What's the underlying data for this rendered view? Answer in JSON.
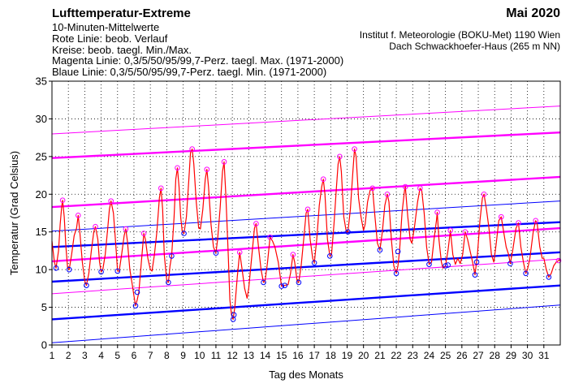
{
  "header": {
    "title": "Lufttemperatur-Extreme",
    "month": "Mai 2020",
    "lines": [
      "10-Minuten-Mittelwerte",
      "Rote Linie: beob. Verlauf",
      "Kreise: beob. taegl. Min./Max.",
      "Magenta Linie: 0,3/5/50/95/99,7-Perz. taegl. Max. (1971-2000)",
      "Blaue Linie: 0,3/5/50/95/99,7-Perz. taegl. Min. (1971-2000)"
    ],
    "institute": [
      "Institut f. Meteorologie (BOKU-Met) 1190 Wien",
      "Dach Schwackhoefer-Haus (265 m NN)"
    ]
  },
  "chart_data": {
    "type": "line",
    "xlabel": "Tag des Monats",
    "ylabel": "Temperatur (Grad Celsius)",
    "ylim": [
      0,
      35
    ],
    "xlim": [
      1,
      32
    ],
    "x_ticks": [
      1,
      2,
      3,
      4,
      5,
      6,
      7,
      8,
      9,
      10,
      11,
      12,
      13,
      14,
      15,
      16,
      17,
      18,
      19,
      20,
      21,
      22,
      23,
      24,
      25,
      26,
      27,
      28,
      29,
      30,
      31
    ],
    "y_ticks": [
      0,
      5,
      10,
      15,
      20,
      25,
      30,
      35
    ],
    "grid": true,
    "colors": {
      "observed": "#ff0000",
      "max_percentile": "#ff00ff",
      "min_percentile": "#0000ff",
      "circle_max": "#ff00ff",
      "circle_min": "#0000ff"
    },
    "max_percentiles": [
      {
        "name": "0,3",
        "start": 6.8,
        "end": 11.4,
        "weight": "thin"
      },
      {
        "name": "5",
        "start": 11.1,
        "end": 15.5,
        "weight": "thick"
      },
      {
        "name": "50",
        "start": 18.3,
        "end": 22.3,
        "weight": "thick"
      },
      {
        "name": "95",
        "start": 24.8,
        "end": 28.2,
        "weight": "thick"
      },
      {
        "name": "99,7",
        "start": 28.0,
        "end": 31.7,
        "weight": "thin"
      }
    ],
    "min_percentiles": [
      {
        "name": "0,3",
        "start": 0.3,
        "end": 5.3,
        "weight": "thin"
      },
      {
        "name": "5",
        "start": 3.4,
        "end": 7.9,
        "weight": "thick"
      },
      {
        "name": "50",
        "start": 8.4,
        "end": 12.3,
        "weight": "thick"
      },
      {
        "name": "95",
        "start": 13.0,
        "end": 16.3,
        "weight": "thick"
      },
      {
        "name": "99,7",
        "start": 15.1,
        "end": 19.1,
        "weight": "thin"
      }
    ],
    "observed": [
      [
        1.0,
        13.8
      ],
      [
        1.15,
        11.0
      ],
      [
        1.25,
        10.2
      ],
      [
        1.4,
        12.5
      ],
      [
        1.5,
        16.0
      ],
      [
        1.6,
        18.5
      ],
      [
        1.65,
        19.2
      ],
      [
        1.75,
        17.0
      ],
      [
        1.85,
        13.0
      ],
      [
        1.95,
        10.3
      ],
      [
        2.05,
        10.0
      ],
      [
        2.2,
        12.0
      ],
      [
        2.35,
        14.5
      ],
      [
        2.5,
        15.5
      ],
      [
        2.6,
        17.2
      ],
      [
        2.7,
        15.0
      ],
      [
        2.85,
        11.0
      ],
      [
        3.0,
        8.5
      ],
      [
        3.1,
        7.9
      ],
      [
        3.25,
        9.5
      ],
      [
        3.4,
        12.5
      ],
      [
        3.55,
        15.0
      ],
      [
        3.65,
        15.7
      ],
      [
        3.8,
        14.0
      ],
      [
        3.9,
        11.0
      ],
      [
        4.0,
        9.7
      ],
      [
        4.1,
        10.0
      ],
      [
        4.25,
        12.0
      ],
      [
        4.4,
        15.5
      ],
      [
        4.5,
        18.0
      ],
      [
        4.6,
        19.1
      ],
      [
        4.75,
        17.5
      ],
      [
        4.9,
        13.0
      ],
      [
        5.0,
        9.8
      ],
      [
        5.1,
        9.8
      ],
      [
        5.25,
        12.0
      ],
      [
        5.4,
        14.5
      ],
      [
        5.5,
        15.4
      ],
      [
        5.6,
        13.8
      ],
      [
        5.75,
        10.0
      ],
      [
        5.9,
        8.0
      ],
      [
        6.0,
        6.5
      ],
      [
        6.1,
        5.2
      ],
      [
        6.2,
        6.0
      ],
      [
        6.3,
        7.0
      ],
      [
        6.45,
        11.0
      ],
      [
        6.6,
        14.8
      ],
      [
        6.7,
        14.0
      ],
      [
        6.85,
        11.5
      ],
      [
        7.0,
        10.0
      ],
      [
        7.1,
        9.8
      ],
      [
        7.25,
        12.0
      ],
      [
        7.4,
        15.0
      ],
      [
        7.55,
        19.5
      ],
      [
        7.65,
        20.8
      ],
      [
        7.75,
        18.0
      ],
      [
        7.85,
        12.0
      ],
      [
        8.0,
        8.5
      ],
      [
        8.1,
        8.3
      ],
      [
        8.2,
        10.5
      ],
      [
        8.3,
        11.8
      ],
      [
        8.45,
        17.0
      ],
      [
        8.55,
        22.0
      ],
      [
        8.65,
        23.5
      ],
      [
        8.75,
        21.0
      ],
      [
        8.85,
        17.0
      ],
      [
        8.95,
        15.0
      ],
      [
        9.05,
        14.8
      ],
      [
        9.2,
        17.0
      ],
      [
        9.35,
        22.0
      ],
      [
        9.45,
        25.5
      ],
      [
        9.55,
        26.0
      ],
      [
        9.65,
        24.0
      ],
      [
        9.8,
        19.0
      ],
      [
        9.95,
        15.5
      ],
      [
        10.05,
        15.4
      ],
      [
        10.2,
        18.0
      ],
      [
        10.35,
        22.0
      ],
      [
        10.45,
        23.3
      ],
      [
        10.55,
        21.0
      ],
      [
        10.7,
        16.0
      ],
      [
        10.85,
        13.0
      ],
      [
        11.0,
        12.2
      ],
      [
        11.1,
        14.0
      ],
      [
        11.25,
        18.0
      ],
      [
        11.4,
        23.0
      ],
      [
        11.5,
        24.3
      ],
      [
        11.6,
        20.0
      ],
      [
        11.75,
        12.0
      ],
      [
        11.85,
        6.0
      ],
      [
        11.95,
        4.0
      ],
      [
        12.05,
        3.4
      ],
      [
        12.15,
        5.0
      ],
      [
        12.3,
        9.0
      ],
      [
        12.45,
        12.3
      ],
      [
        12.6,
        10.0
      ],
      [
        12.75,
        7.5
      ],
      [
        12.9,
        6.2
      ],
      [
        13.0,
        7.5
      ],
      [
        13.15,
        11.0
      ],
      [
        13.35,
        15.5
      ],
      [
        13.45,
        16.1
      ],
      [
        13.6,
        13.0
      ],
      [
        13.75,
        10.0
      ],
      [
        13.9,
        8.3
      ],
      [
        14.0,
        8.5
      ],
      [
        14.15,
        11.0
      ],
      [
        14.3,
        14.3
      ],
      [
        14.45,
        13.8
      ],
      [
        14.6,
        13.0
      ],
      [
        14.8,
        11.0
      ],
      [
        15.0,
        7.8
      ],
      [
        15.2,
        7.9
      ],
      [
        15.4,
        8.0
      ],
      [
        15.55,
        9.5
      ],
      [
        15.7,
        12.0
      ],
      [
        15.8,
        11.0
      ],
      [
        15.95,
        8.5
      ],
      [
        16.05,
        8.3
      ],
      [
        16.2,
        10.5
      ],
      [
        16.35,
        14.0
      ],
      [
        16.5,
        17.5
      ],
      [
        16.6,
        18.0
      ],
      [
        16.75,
        14.0
      ],
      [
        16.9,
        11.5
      ],
      [
        17.0,
        10.9
      ],
      [
        17.15,
        14.0
      ],
      [
        17.3,
        18.5
      ],
      [
        17.45,
        21.0
      ],
      [
        17.55,
        22.0
      ],
      [
        17.65,
        20.0
      ],
      [
        17.8,
        14.0
      ],
      [
        17.95,
        11.8
      ],
      [
        18.05,
        12.0
      ],
      [
        18.2,
        16.0
      ],
      [
        18.35,
        21.0
      ],
      [
        18.45,
        24.0
      ],
      [
        18.55,
        25.0
      ],
      [
        18.65,
        23.0
      ],
      [
        18.8,
        17.0
      ],
      [
        18.95,
        15.0
      ],
      [
        19.05,
        15.0
      ],
      [
        19.2,
        18.0
      ],
      [
        19.35,
        23.0
      ],
      [
        19.45,
        26.0
      ],
      [
        19.55,
        25.0
      ],
      [
        19.7,
        19.5
      ],
      [
        19.85,
        17.0
      ],
      [
        20.0,
        15.2
      ],
      [
        20.1,
        16.0
      ],
      [
        20.25,
        19.0
      ],
      [
        20.4,
        20.5
      ],
      [
        20.55,
        20.8
      ],
      [
        20.7,
        17.0
      ],
      [
        20.85,
        13.5
      ],
      [
        21.0,
        12.6
      ],
      [
        21.15,
        15.0
      ],
      [
        21.3,
        18.5
      ],
      [
        21.45,
        20.0
      ],
      [
        21.55,
        19.0
      ],
      [
        21.7,
        14.0
      ],
      [
        21.85,
        10.5
      ],
      [
        22.0,
        9.5
      ],
      [
        22.1,
        10.5
      ],
      [
        22.2,
        12.5
      ],
      [
        22.35,
        17.5
      ],
      [
        22.5,
        20.5
      ],
      [
        22.55,
        21.0
      ],
      [
        22.7,
        17.0
      ],
      [
        22.85,
        14.0
      ],
      [
        22.95,
        13.5
      ],
      [
        23.1,
        15.5
      ],
      [
        23.3,
        19.0
      ],
      [
        23.45,
        20.8
      ],
      [
        23.55,
        20.5
      ],
      [
        23.7,
        17.5
      ],
      [
        23.85,
        13.0
      ],
      [
        24.0,
        10.7
      ],
      [
        24.15,
        11.0
      ],
      [
        24.3,
        14.0
      ],
      [
        24.45,
        16.5
      ],
      [
        24.5,
        17.6
      ],
      [
        24.6,
        14.0
      ],
      [
        24.75,
        11.0
      ],
      [
        24.85,
        10.2
      ],
      [
        25.0,
        10.5
      ],
      [
        25.15,
        12.5
      ],
      [
        25.3,
        15.2
      ],
      [
        25.45,
        12.0
      ],
      [
        25.6,
        10.7
      ],
      [
        25.75,
        11.5
      ],
      [
        25.9,
        10.8
      ],
      [
        26.05,
        12.0
      ],
      [
        26.2,
        15.0
      ],
      [
        26.35,
        14.0
      ],
      [
        26.5,
        12.5
      ],
      [
        26.65,
        11.0
      ],
      [
        26.8,
        9.3
      ],
      [
        26.95,
        12.0
      ],
      [
        27.1,
        16.5
      ],
      [
        27.25,
        19.5
      ],
      [
        27.35,
        20.0
      ],
      [
        27.5,
        18.0
      ],
      [
        27.65,
        15.5
      ],
      [
        27.8,
        12.0
      ],
      [
        27.95,
        11.0
      ],
      [
        28.1,
        13.5
      ],
      [
        28.25,
        16.5
      ],
      [
        28.4,
        17.0
      ],
      [
        28.55,
        15.0
      ],
      [
        28.7,
        13.0
      ],
      [
        28.85,
        12.0
      ],
      [
        28.95,
        10.8
      ],
      [
        29.1,
        12.5
      ],
      [
        29.3,
        15.5
      ],
      [
        29.45,
        16.2
      ],
      [
        29.6,
        13.0
      ],
      [
        29.75,
        11.0
      ],
      [
        29.9,
        9.5
      ],
      [
        30.0,
        10.0
      ],
      [
        30.15,
        11.5
      ],
      [
        30.35,
        15.0
      ],
      [
        30.5,
        16.5
      ],
      [
        30.6,
        16.0
      ],
      [
        30.75,
        13.0
      ],
      [
        30.9,
        11.5
      ],
      [
        31.0,
        11.5
      ],
      [
        31.15,
        10.0
      ],
      [
        31.3,
        9.0
      ],
      [
        31.45,
        9.5
      ],
      [
        31.6,
        10.5
      ],
      [
        31.75,
        11.0
      ],
      [
        31.9,
        11.2
      ],
      [
        32.0,
        11.3
      ]
    ],
    "daily_max_circles": [
      [
        1.65,
        19.2
      ],
      [
        2.6,
        17.2
      ],
      [
        3.65,
        15.7
      ],
      [
        4.6,
        19.1
      ],
      [
        5.5,
        15.4
      ],
      [
        6.6,
        14.8
      ],
      [
        7.65,
        20.8
      ],
      [
        8.65,
        23.5
      ],
      [
        9.55,
        26.0
      ],
      [
        10.45,
        23.3
      ],
      [
        11.5,
        24.3
      ],
      [
        12.45,
        12.3
      ],
      [
        13.45,
        16.1
      ],
      [
        14.3,
        14.3
      ],
      [
        15.7,
        12.0
      ],
      [
        16.6,
        18.0
      ],
      [
        17.55,
        22.0
      ],
      [
        18.55,
        25.0
      ],
      [
        19.45,
        26.0
      ],
      [
        20.55,
        20.8
      ],
      [
        21.45,
        20.0
      ],
      [
        22.55,
        21.0
      ],
      [
        23.45,
        20.8
      ],
      [
        24.5,
        17.6
      ],
      [
        25.3,
        15.2
      ],
      [
        26.2,
        15.0
      ],
      [
        27.35,
        20.0
      ],
      [
        28.4,
        17.0
      ],
      [
        29.45,
        16.2
      ],
      [
        30.5,
        16.5
      ],
      [
        31.9,
        11.2
      ]
    ],
    "daily_min_circles": [
      [
        1.25,
        10.2
      ],
      [
        2.05,
        10.0
      ],
      [
        3.1,
        7.9
      ],
      [
        4.0,
        9.7
      ],
      [
        5.0,
        9.8
      ],
      [
        6.1,
        5.2
      ],
      [
        6.2,
        7.0
      ],
      [
        8.1,
        8.3
      ],
      [
        8.3,
        11.8
      ],
      [
        9.05,
        14.8
      ],
      [
        11.0,
        12.2
      ],
      [
        12.05,
        3.4
      ],
      [
        12.1,
        4.0
      ],
      [
        13.9,
        8.3
      ],
      [
        15.0,
        7.8
      ],
      [
        15.2,
        7.9
      ],
      [
        16.05,
        8.3
      ],
      [
        17.0,
        10.9
      ],
      [
        17.95,
        11.8
      ],
      [
        19.05,
        15.0
      ],
      [
        21.0,
        12.6
      ],
      [
        22.0,
        9.5
      ],
      [
        22.1,
        12.4
      ],
      [
        24.0,
        10.7
      ],
      [
        25.0,
        10.5
      ],
      [
        25.15,
        10.6
      ],
      [
        26.8,
        9.3
      ],
      [
        26.9,
        11.0
      ],
      [
        28.95,
        10.8
      ],
      [
        29.9,
        9.5
      ],
      [
        31.3,
        9.0
      ]
    ]
  }
}
